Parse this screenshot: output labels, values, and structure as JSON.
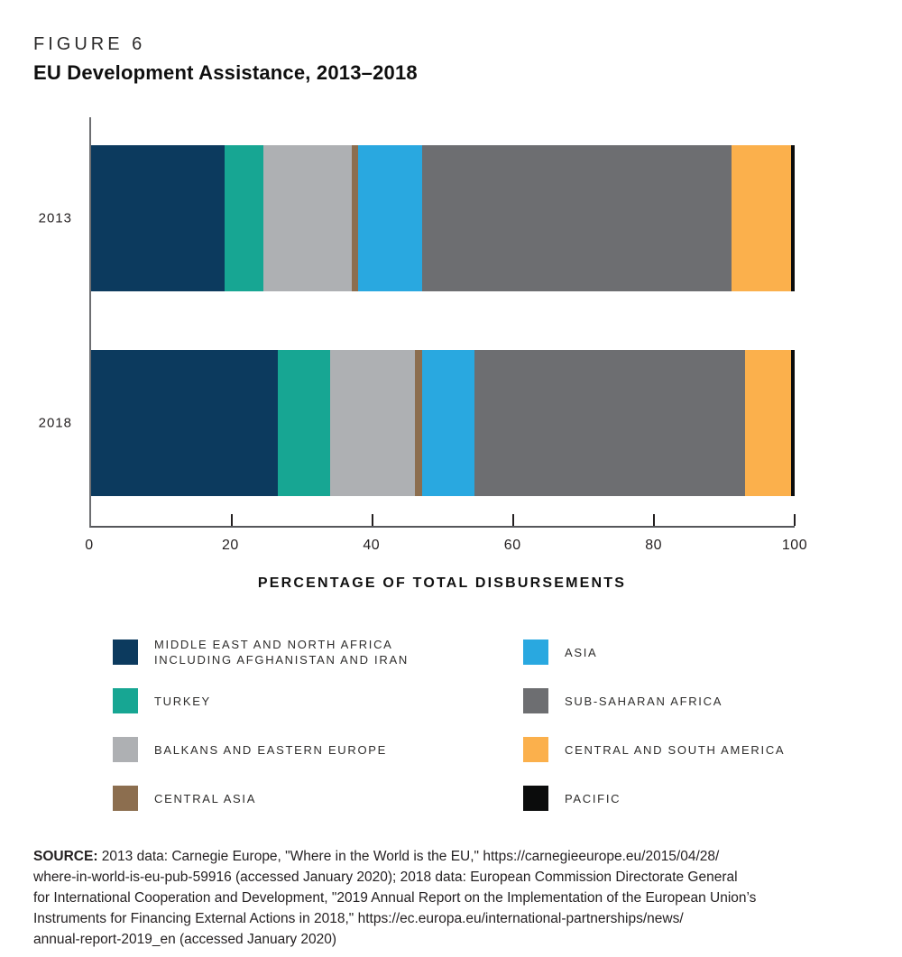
{
  "header": {
    "figure_label": "FIGURE 6",
    "title": "EU Development Assistance, 2013–2018"
  },
  "chart_data": {
    "type": "bar",
    "variant": "horizontal-stacked",
    "title": "EU Development Assistance, 2013–2018",
    "categories": [
      "2013",
      "2018"
    ],
    "series": [
      {
        "name": "MIDDLE EAST AND NORTH AFRICA INCLUDING AFGHANISTAN AND IRAN",
        "color": "#0C3A5E",
        "values": [
          19,
          26.5
        ]
      },
      {
        "name": "TURKEY",
        "color": "#17A693",
        "values": [
          5.5,
          7.5
        ]
      },
      {
        "name": "BALKANS AND EASTERN EUROPE",
        "color": "#AEB0B3",
        "values": [
          12.5,
          12
        ]
      },
      {
        "name": "CENTRAL ASIA",
        "color": "#8C6E4F",
        "values": [
          1,
          1
        ]
      },
      {
        "name": "ASIA",
        "color": "#29A8E0",
        "values": [
          9,
          7.5
        ]
      },
      {
        "name": "SUB-SAHARAN AFRICA",
        "color": "#6D6E71",
        "values": [
          44,
          38.5
        ]
      },
      {
        "name": "CENTRAL AND SOUTH AMERICA",
        "color": "#FBB04C",
        "values": [
          8.5,
          6.5
        ]
      },
      {
        "name": "PACIFIC",
        "color": "#0B0C0C",
        "values": [
          0.5,
          0.5
        ]
      }
    ],
    "xlabel": "PERCENTAGE OF TOTAL DISBURSEMENTS",
    "ylabel": "",
    "x_ticks": [
      0,
      20,
      40,
      60,
      80,
      100
    ],
    "xlim": [
      0,
      100
    ],
    "grid": false,
    "units": "percent",
    "legend_position": "bottom-two-columns"
  },
  "legend": {
    "items": [
      {
        "label": "MIDDLE EAST AND NORTH AFRICA\nINCLUDING AFGHANISTAN AND IRAN",
        "color": "#0C3A5E"
      },
      {
        "label": "TURKEY",
        "color": "#17A693"
      },
      {
        "label": "BALKANS AND EASTERN EUROPE",
        "color": "#AEB0B3"
      },
      {
        "label": "CENTRAL ASIA",
        "color": "#8C6E4F"
      },
      {
        "label": "ASIA",
        "color": "#29A8E0"
      },
      {
        "label": "SUB-SAHARAN AFRICA",
        "color": "#6D6E71"
      },
      {
        "label": "CENTRAL AND SOUTH AMERICA",
        "color": "#FBB04C"
      },
      {
        "label": "PACIFIC",
        "color": "#0B0C0C"
      }
    ]
  },
  "source": {
    "label": "SOURCE:",
    "text": "2013 data: Carnegie Europe, \"Where in the World is the EU,\" https://carnegieeurope.eu/2015/04/28/\nwhere-in-world-is-eu-pub-59916 (accessed January 2020); 2018 data: European Commission Directorate General\nfor International Cooperation and Development, \"2019 Annual Report on the Implementation of the European Union’s\nInstruments for Financing External Actions in 2018,\" https://ec.europa.eu/international-partnerships/news/\nannual-report-2019_en (accessed January 2020)"
  }
}
